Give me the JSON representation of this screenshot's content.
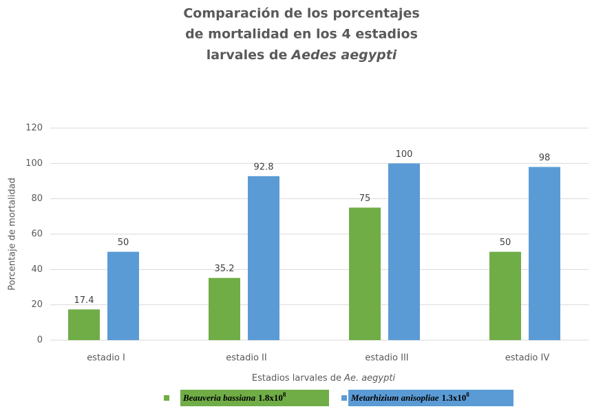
{
  "chart_data": {
    "type": "bar",
    "title": [
      "Comparación de los porcentajes",
      "de mortalidad en los 4 estadios",
      "larvales de",
      "Aedes aegypti"
    ],
    "xlabel": [
      "Estadios larvales de",
      "Ae. aegypti"
    ],
    "ylabel": "Porcentaje de mortalidad",
    "categories": [
      "estadio I",
      "estadio II",
      "estadio III",
      "estadio IV"
    ],
    "series": [
      {
        "name": "Beauveria bassiana",
        "dose": "1.8x10",
        "exponent": "8",
        "color": "#70ad47",
        "values": [
          17.4,
          35.2,
          75,
          50
        ]
      },
      {
        "name": "Metarhizium anisopliae",
        "dose": "1.3x10",
        "exponent": "8",
        "color": "#5b9bd5",
        "values": [
          50,
          92.8,
          100,
          98
        ]
      }
    ],
    "ylim": [
      0,
      120
    ],
    "yticks": [
      0,
      20,
      40,
      60,
      80,
      100,
      120
    ],
    "grid": true
  }
}
